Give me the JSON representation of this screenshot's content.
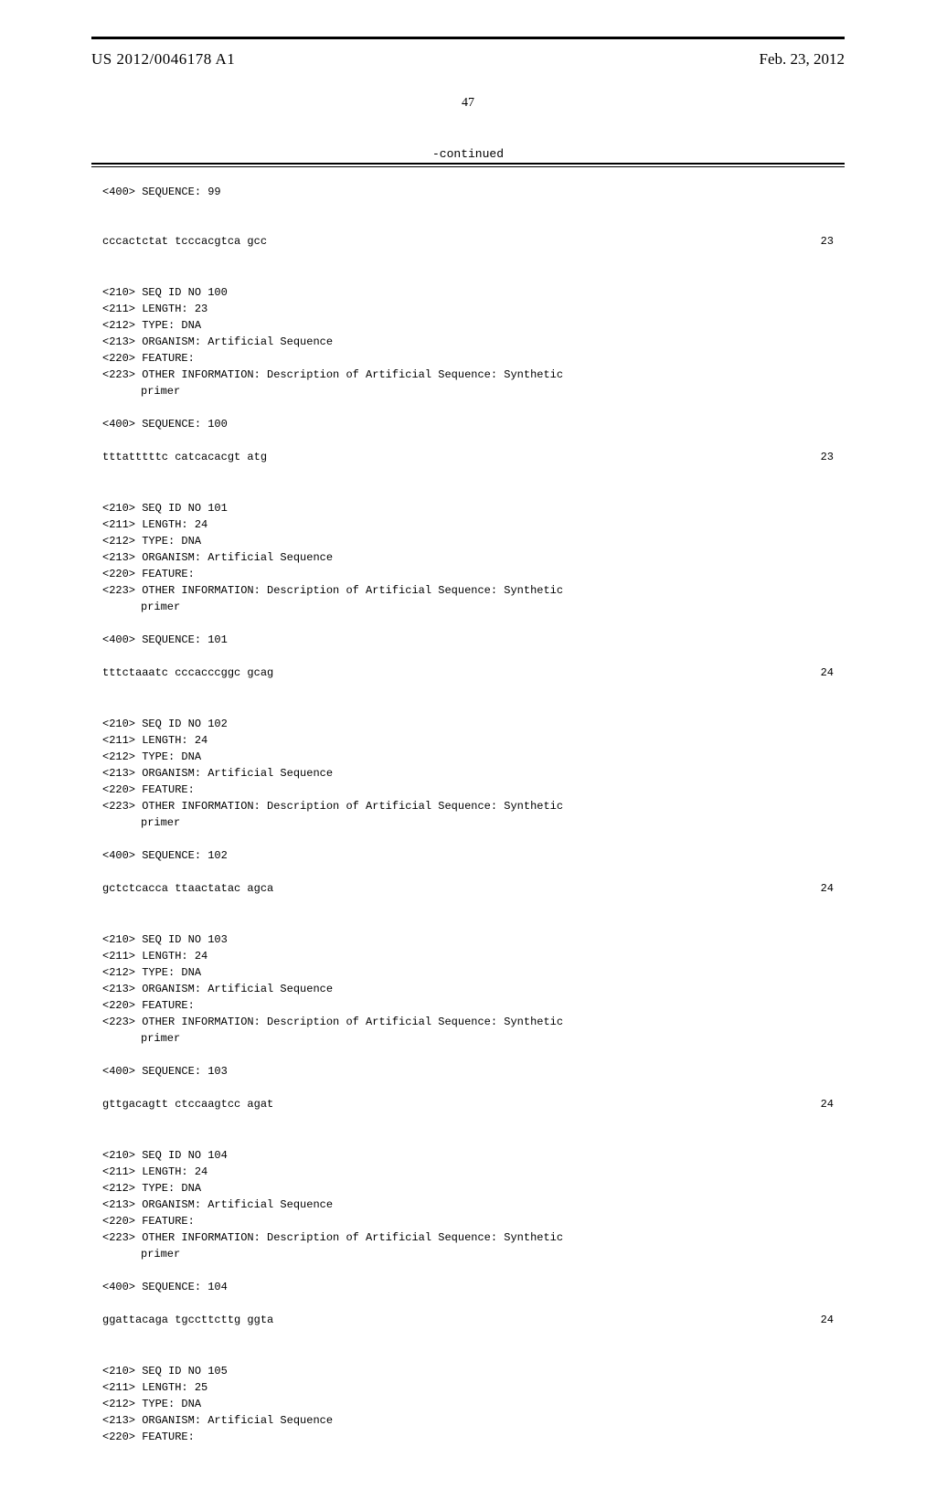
{
  "header": {
    "pub_number": "US 2012/0046178 A1",
    "pub_date": "Feb. 23, 2012",
    "page_number": "47",
    "continued_label": "-continued"
  },
  "sequences": [
    {
      "pre_lines": [
        "<400> SEQUENCE: 99"
      ],
      "seq_text": "cccactctat tcccacgtca gcc",
      "seq_length": "23"
    },
    {
      "header_lines": [
        "<210> SEQ ID NO 100",
        "<211> LENGTH: 23",
        "<212> TYPE: DNA",
        "<213> ORGANISM: Artificial Sequence",
        "<220> FEATURE:",
        "<223> OTHER INFORMATION: Description of Artificial Sequence: Synthetic"
      ],
      "indent_line": "primer",
      "label_line": "<400> SEQUENCE: 100",
      "seq_text": "tttatttttc catcacacgt atg",
      "seq_length": "23"
    },
    {
      "header_lines": [
        "<210> SEQ ID NO 101",
        "<211> LENGTH: 24",
        "<212> TYPE: DNA",
        "<213> ORGANISM: Artificial Sequence",
        "<220> FEATURE:",
        "<223> OTHER INFORMATION: Description of Artificial Sequence: Synthetic"
      ],
      "indent_line": "primer",
      "label_line": "<400> SEQUENCE: 101",
      "seq_text": "tttctaaatc cccacccggc gcag",
      "seq_length": "24"
    },
    {
      "header_lines": [
        "<210> SEQ ID NO 102",
        "<211> LENGTH: 24",
        "<212> TYPE: DNA",
        "<213> ORGANISM: Artificial Sequence",
        "<220> FEATURE:",
        "<223> OTHER INFORMATION: Description of Artificial Sequence: Synthetic"
      ],
      "indent_line": "primer",
      "label_line": "<400> SEQUENCE: 102",
      "seq_text": "gctctcacca ttaactatac agca",
      "seq_length": "24"
    },
    {
      "header_lines": [
        "<210> SEQ ID NO 103",
        "<211> LENGTH: 24",
        "<212> TYPE: DNA",
        "<213> ORGANISM: Artificial Sequence",
        "<220> FEATURE:",
        "<223> OTHER INFORMATION: Description of Artificial Sequence: Synthetic"
      ],
      "indent_line": "primer",
      "label_line": "<400> SEQUENCE: 103",
      "seq_text": "gttgacagtt ctccaagtcc agat",
      "seq_length": "24"
    },
    {
      "header_lines": [
        "<210> SEQ ID NO 104",
        "<211> LENGTH: 24",
        "<212> TYPE: DNA",
        "<213> ORGANISM: Artificial Sequence",
        "<220> FEATURE:",
        "<223> OTHER INFORMATION: Description of Artificial Sequence: Synthetic"
      ],
      "indent_line": "primer",
      "label_line": "<400> SEQUENCE: 104",
      "seq_text": "ggattacaga tgccttcttg ggta",
      "seq_length": "24"
    },
    {
      "header_lines": [
        "<210> SEQ ID NO 105",
        "<211> LENGTH: 25",
        "<212> TYPE: DNA",
        "<213> ORGANISM: Artificial Sequence",
        "<220> FEATURE:"
      ]
    }
  ]
}
